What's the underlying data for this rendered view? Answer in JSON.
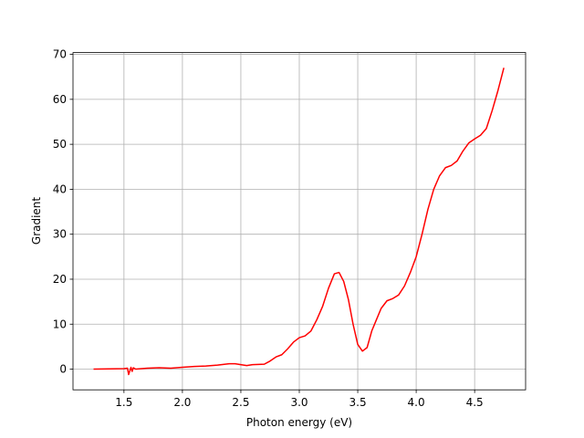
{
  "chart_data": {
    "type": "line",
    "xlabel": "Photon energy (eV)",
    "ylabel": "Gradient",
    "x": [
      1.24,
      1.5,
      1.53,
      1.54,
      1.56,
      1.57,
      1.58,
      1.6,
      1.7,
      1.8,
      1.9,
      2.0,
      2.1,
      2.2,
      2.3,
      2.4,
      2.45,
      2.55,
      2.6,
      2.7,
      2.75,
      2.8,
      2.85,
      2.9,
      2.95,
      3.0,
      3.05,
      3.1,
      3.15,
      3.2,
      3.25,
      3.3,
      3.34,
      3.38,
      3.42,
      3.46,
      3.5,
      3.54,
      3.58,
      3.62,
      3.66,
      3.7,
      3.75,
      3.8,
      3.85,
      3.9,
      3.95,
      4.0,
      4.05,
      4.1,
      4.15,
      4.2,
      4.25,
      4.3,
      4.35,
      4.4,
      4.45,
      4.5,
      4.55,
      4.6,
      4.65,
      4.7,
      4.75
    ],
    "series": [
      {
        "color": "#ff0000",
        "values": [
          0,
          0.1,
          0.2,
          -1.2,
          0.4,
          -0.5,
          0.3,
          0,
          0.2,
          0.3,
          0.2,
          0.4,
          0.6,
          0.7,
          0.9,
          1.2,
          1.2,
          0.8,
          1.0,
          1.1,
          1.8,
          2.7,
          3.2,
          4.5,
          6.0,
          7.0,
          7.4,
          8.5,
          11,
          14,
          18,
          21.2,
          21.5,
          19.5,
          15.5,
          10,
          5.5,
          4.0,
          4.8,
          8.5,
          11,
          13.5,
          15.2,
          15.7,
          16.5,
          18.5,
          21.5,
          25,
          30,
          35.5,
          40,
          43,
          44.8,
          45.3,
          46.3,
          48.5,
          50.3,
          51.2,
          52,
          53.5,
          57.5,
          62,
          67
        ]
      }
    ],
    "xlim": [
      1.064,
      4.936
    ],
    "ylim": [
      -4.6,
      70.4
    ],
    "xticks": [
      {
        "value": 1.5,
        "label": "1.5"
      },
      {
        "value": 2.0,
        "label": "2.0"
      },
      {
        "value": 2.5,
        "label": "2.5"
      },
      {
        "value": 3.0,
        "label": "3.0"
      },
      {
        "value": 3.5,
        "label": "3.5"
      },
      {
        "value": 4.0,
        "label": "4.0"
      },
      {
        "value": 4.5,
        "label": "4.5"
      }
    ],
    "yticks": [
      0,
      10,
      20,
      30,
      40,
      50,
      60,
      70
    ],
    "grid": true
  }
}
